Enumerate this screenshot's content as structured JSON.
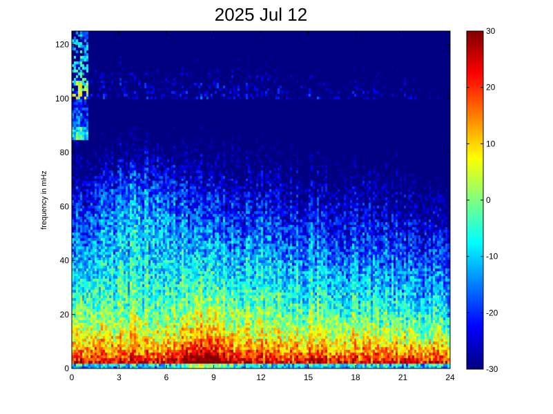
{
  "chart_data": {
    "type": "heatmap",
    "title": "2025 Jul 12",
    "xlabel": "",
    "ylabel": "frequency in mHz",
    "xlim": [
      0,
      24
    ],
    "ylim": [
      0,
      125
    ],
    "x_ticks": [
      "0",
      "3",
      "6",
      "9",
      "12",
      "15",
      "18",
      "21",
      "24"
    ],
    "y_ticks": [
      "0",
      "20",
      "40",
      "60",
      "80",
      "100",
      "120"
    ],
    "colorbar": {
      "range": [
        -30,
        30
      ],
      "ticks": [
        "30",
        "20",
        "10",
        "0",
        "-10",
        "-20",
        "-30"
      ],
      "colormap": "jet"
    },
    "grid": false
  }
}
